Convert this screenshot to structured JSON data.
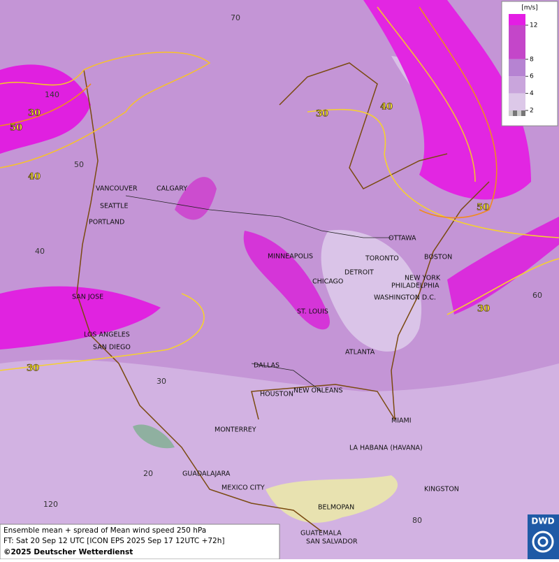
{
  "map": {
    "cities": [
      "VANCOUVER",
      "CALGARY",
      "SEATTLE",
      "PORTLAND",
      "MINNEAPOLIS",
      "TORONTO",
      "OTTAWA",
      "BOSTON",
      "DETROIT",
      "CHICAGO",
      "NEW YORK",
      "PHILADELPHIA",
      "WASHINGTON D.C.",
      "SAN JOSE",
      "ST. LOUIS",
      "LOS ANGELES",
      "SAN DIEGO",
      "ATLANTA",
      "DALLAS",
      "HOUSTON",
      "NEW ORLEANS",
      "MIAMI",
      "MONTERREY",
      "LA HABANA (HAVANA)",
      "GUADALAJARA",
      "MEXICO CITY",
      "KINGSTON",
      "BELMOPAN",
      "GUATEMALA",
      "SAN SALVADOR"
    ],
    "grid_labels": [
      70,
      140,
      50,
      40,
      30,
      60,
      20,
      120,
      80
    ],
    "contour_labels": [
      30,
      50,
      40,
      30,
      40,
      50,
      30,
      30
    ]
  },
  "legend": {
    "unit": "[m/s]",
    "levels": [
      12,
      8,
      6,
      4,
      2
    ],
    "colors": [
      "#e41ee4",
      "#c446c9",
      "#b683d2",
      "#c9a5dc",
      "#dcc8e8"
    ]
  },
  "footer": {
    "lines": [
      "Ensemble mean + spread of Mean wind speed 250 hPa",
      "FT: Sat 20 Sep 12 UTC [ICON EPS 2025 Sep 17 12UTC +72h]",
      "©2025 Deutscher Wetterdienst"
    ]
  },
  "logo": "DWD"
}
